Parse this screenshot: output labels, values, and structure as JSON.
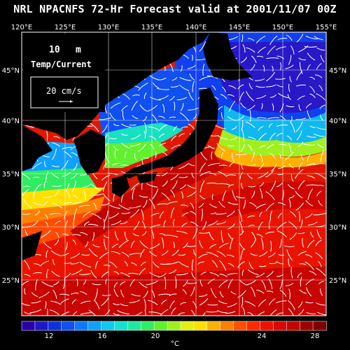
{
  "title": "NRL NPACNFS 72-Hr Forecast valid at 2001/11/07 00Z",
  "lon_labels": [
    "120°E",
    "125°E",
    "130°E",
    "135°E",
    "140°E",
    "145°E",
    "150°E",
    "155°E"
  ],
  "lat_labels": [
    "45°N",
    "40°N",
    "35°N",
    "30°N",
    "25°N"
  ],
  "legend": {
    "depth_value": "10",
    "depth_unit": "m",
    "field_label": "Temp/Current",
    "vector_label": "20 cm/s"
  },
  "colorbar": {
    "unit": "°C",
    "ticks": [
      "12",
      "16",
      "20",
      "24",
      "28"
    ],
    "colors": [
      "#2a00a8",
      "#1b18c8",
      "#1030e0",
      "#0e50f0",
      "#1078ff",
      "#10a0ff",
      "#10c8f0",
      "#18e0d0",
      "#20e8a0",
      "#30ec60",
      "#60f030",
      "#a0f020",
      "#e0f010",
      "#ffe000",
      "#ffb000",
      "#ff8000",
      "#ff5000",
      "#ff2800",
      "#f01000",
      "#d80800",
      "#c00400",
      "#a00000",
      "#800000"
    ]
  },
  "colors": {
    "land": "#000000",
    "grid": "#ffffff",
    "vectors": "#ffffff"
  }
}
